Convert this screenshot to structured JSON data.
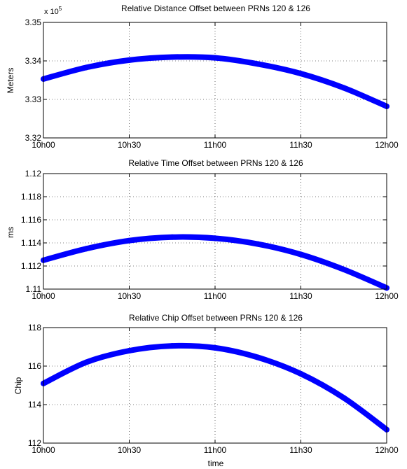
{
  "chart_data": [
    {
      "type": "line",
      "title": "Relative Distance Offset between PRNs 120 & 126",
      "xlabel": "",
      "ylabel": "Meters",
      "exponent_label": "x 10",
      "exponent_power": "5",
      "xlim": [
        "10h00",
        "12h00"
      ],
      "ylim": [
        3.32,
        3.35
      ],
      "x_ticks": [
        "10h00",
        "10h30",
        "11h00",
        "11h30",
        "12h00"
      ],
      "y_ticks": [
        "3.32",
        "3.33",
        "3.34",
        "3.35"
      ],
      "y_tick_values": [
        3.32,
        3.33,
        3.34,
        3.35
      ],
      "grid": true,
      "color": "#0000ff",
      "series": [
        {
          "x": [
            "10h00",
            "10h15",
            "10h30",
            "10h45",
            "11h00",
            "11h15",
            "11h30",
            "11h45",
            "12h00"
          ],
          "y": [
            3.3353,
            3.3383,
            3.3402,
            3.341,
            3.3408,
            3.3392,
            3.3367,
            3.333,
            3.3282
          ]
        }
      ]
    },
    {
      "type": "line",
      "title": "Relative Time Offset between PRNs 120 & 126",
      "xlabel": "",
      "ylabel": "ms",
      "xlim": [
        "10h00",
        "12h00"
      ],
      "ylim": [
        1.11,
        1.12
      ],
      "x_ticks": [
        "10h00",
        "10h30",
        "11h00",
        "11h30",
        "12h00"
      ],
      "y_ticks": [
        "1.11",
        "1.112",
        "1.114",
        "1.116",
        "1.118",
        "1.12"
      ],
      "y_tick_values": [
        1.11,
        1.112,
        1.114,
        1.116,
        1.118,
        1.12
      ],
      "grid": true,
      "color": "#0000ff",
      "series": [
        {
          "x": [
            "10h00",
            "10h15",
            "10h30",
            "10h45",
            "11h00",
            "11h15",
            "11h30",
            "11h45",
            "12h00"
          ],
          "y": [
            1.1125,
            1.1135,
            1.1142,
            1.1145,
            1.1144,
            1.1139,
            1.113,
            1.1117,
            1.1101
          ]
        }
      ]
    },
    {
      "type": "line",
      "title": "Relative Chip Offset between PRNs 120 & 126",
      "xlabel": "time",
      "ylabel": "Chip",
      "xlim": [
        "10h00",
        "12h00"
      ],
      "ylim": [
        112,
        118
      ],
      "x_ticks": [
        "10h00",
        "10h30",
        "11h00",
        "11h30",
        "12h00"
      ],
      "y_ticks": [
        "112",
        "114",
        "116",
        "118"
      ],
      "y_tick_values": [
        112,
        114,
        116,
        118
      ],
      "grid": true,
      "color": "#0000ff",
      "series": [
        {
          "x": [
            "10h00",
            "10h15",
            "10h30",
            "10h45",
            "11h00",
            "11h15",
            "11h30",
            "11h45",
            "12h00"
          ],
          "y": [
            115.1,
            116.2,
            116.8,
            117.05,
            116.95,
            116.45,
            115.6,
            114.35,
            112.7
          ]
        }
      ]
    }
  ]
}
